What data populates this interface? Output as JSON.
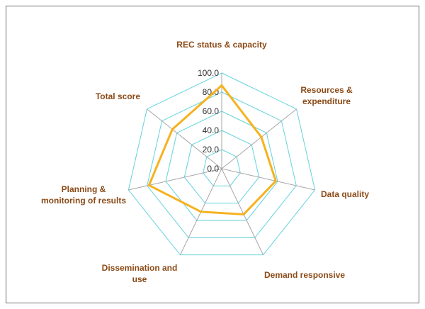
{
  "chart_data": {
    "type": "radar",
    "categories": [
      [
        "REC status & capacity"
      ],
      [
        "Resources &",
        "expenditure"
      ],
      [
        "Data quality"
      ],
      [
        "Demand responsive"
      ],
      [
        "Dissemination and",
        "use"
      ],
      [
        "Planning &",
        "monitoring of results"
      ],
      [
        "Total score"
      ]
    ],
    "series": [
      {
        "values": [
          87,
          53,
          58,
          53,
          50,
          78,
          66
        ]
      }
    ],
    "rlim": [
      0,
      100
    ],
    "ticks": [
      0,
      20,
      40,
      60,
      80,
      100
    ],
    "tick_labels": [
      "0.0",
      "20.0",
      "40.0",
      "60.0",
      "80.0",
      "100.0"
    ],
    "title": "",
    "legend": "none",
    "colors": {
      "series": "#f5b21f",
      "grid": "#62d2dc",
      "axis": "#a6a6a6",
      "label": "#8b4a16"
    }
  }
}
